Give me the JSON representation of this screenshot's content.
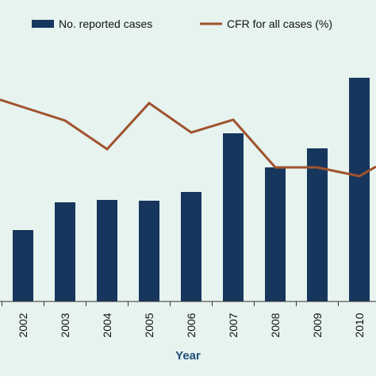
{
  "chart_data": {
    "type": "bar",
    "x_title": "Year",
    "categories": [
      "2002",
      "2003",
      "2004",
      "2005",
      "2006",
      "2007",
      "2008",
      "2009",
      "2010"
    ],
    "series": [
      {
        "name": "No. reported cases",
        "type": "bar",
        "color": "#17365d",
        "values": [
          90,
          125,
          128,
          127,
          138,
          212,
          169,
          193,
          282
        ]
      },
      {
        "name": "CFR for all cases (%)",
        "type": "line",
        "color": "#a0522d",
        "values": [
          245,
          228,
          192,
          250,
          213,
          229,
          169,
          169,
          158
        ]
      }
    ],
    "ylim": [
      0,
      380
    ],
    "legend_position": "top",
    "background_color": "#e6f3ef"
  }
}
